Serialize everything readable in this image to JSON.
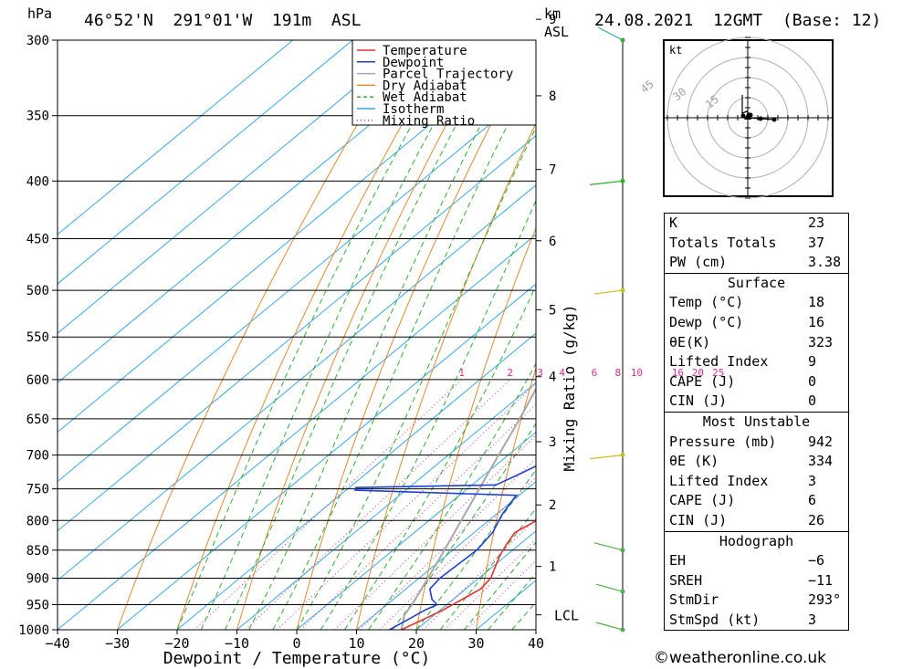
{
  "header": {
    "pressure_unit": "hPa",
    "location": "46°52'N  291°01'W  191m  ASL",
    "height_unit": "km",
    "height_unit_sub": "ASL",
    "datetime": "24.08.2021  12GMT  (Base: 12)"
  },
  "chart_data": {
    "type": "skew-t",
    "xlabel": "Dewpoint / Temperature (°C)",
    "ylabel": "Mixing Ratio (g/kg)",
    "x_ticks": [
      -40,
      -30,
      -20,
      -10,
      0,
      10,
      20,
      30,
      40
    ],
    "x_tick_labels": [
      "−40",
      "−30",
      "−20",
      "−10",
      "0",
      "10",
      "20",
      "30",
      "40"
    ],
    "xlim": [
      -40,
      40
    ],
    "pressure_levels": [
      300,
      350,
      400,
      450,
      500,
      550,
      600,
      650,
      700,
      750,
      800,
      850,
      900,
      950,
      1000
    ],
    "pressure_labels": [
      "300",
      "350",
      "400",
      "450",
      "500",
      "550",
      "600",
      "650",
      "700",
      "750",
      "800",
      "850",
      "900",
      "950",
      "1000"
    ],
    "km_ticks": [
      {
        "km": 1,
        "label": "1"
      },
      {
        "km": 2,
        "label": "2"
      },
      {
        "km": 3,
        "label": "3"
      },
      {
        "km": 4,
        "label": "4"
      },
      {
        "km": 5,
        "label": "5"
      },
      {
        "km": 6,
        "label": "6"
      },
      {
        "km": 7,
        "label": "7"
      },
      {
        "km": 8,
        "label": "8"
      },
      {
        "km": 9,
        "label": "9"
      }
    ],
    "lcl_label": "LCL",
    "lcl_pressure": 970,
    "mixing_ratio_values": [
      1,
      2,
      3,
      4,
      6,
      8,
      10,
      16,
      20,
      25
    ],
    "mixing_ratio_labels": [
      "1",
      "2",
      "3",
      "4",
      "6",
      "8",
      "10",
      "16",
      "20",
      "25"
    ],
    "legend": [
      {
        "name": "Temperature",
        "color": "#e53030",
        "style": "solid"
      },
      {
        "name": "Dewpoint",
        "color": "#2040d0",
        "style": "solid"
      },
      {
        "name": "Parcel Trajectory",
        "color": "#a8a8a8",
        "style": "solid"
      },
      {
        "name": "Dry Adiabat",
        "color": "#e08a30",
        "style": "solid"
      },
      {
        "name": "Wet Adiabat",
        "color": "#2fae2f",
        "style": "dashed"
      },
      {
        "name": "Isotherm",
        "color": "#38a8e8",
        "style": "solid"
      },
      {
        "name": "Mixing Ratio",
        "color": "#d03090",
        "style": "dotted"
      }
    ],
    "temperature": [
      [
        1000,
        17.5
      ],
      [
        980,
        19
      ],
      [
        960,
        20.5
      ],
      [
        940,
        21.5
      ],
      [
        920,
        22.5
      ],
      [
        900,
        22
      ],
      [
        880,
        20.5
      ],
      [
        860,
        19
      ],
      [
        840,
        17.8
      ],
      [
        820,
        16.8
      ],
      [
        800,
        18
      ],
      [
        790,
        19
      ],
      [
        780,
        19.5
      ],
      [
        760,
        20.5
      ],
      [
        750,
        21
      ],
      [
        730,
        16.5
      ],
      [
        700,
        12.5
      ],
      [
        680,
        10.2
      ],
      [
        650,
        7.2
      ],
      [
        620,
        5.2
      ],
      [
        600,
        3
      ],
      [
        580,
        1.3
      ],
      [
        560,
        -0.6
      ],
      [
        540,
        -2.2
      ],
      [
        520,
        -4.8
      ],
      [
        500,
        -7.5
      ],
      [
        480,
        -10.6
      ],
      [
        470,
        -12
      ],
      [
        450,
        -13.5
      ],
      [
        430,
        -16.7
      ],
      [
        410,
        -19.5
      ],
      [
        400,
        -21
      ],
      [
        380,
        -24.6
      ],
      [
        370,
        -25.8
      ],
      [
        350,
        -30.2
      ],
      [
        330,
        -33.2
      ],
      [
        310,
        -36.6
      ],
      [
        300,
        -38.8
      ]
    ],
    "dewpoint": [
      [
        1000,
        15.5
      ],
      [
        980,
        16.5
      ],
      [
        960,
        17.5
      ],
      [
        950,
        18.4
      ],
      [
        940,
        16.5
      ],
      [
        920,
        14
      ],
      [
        900,
        13.5
      ],
      [
        870,
        13.8
      ],
      [
        850,
        14
      ],
      [
        820,
        13.1
      ],
      [
        790,
        11
      ],
      [
        760,
        9.5
      ],
      [
        752,
        -18.5
      ],
      [
        748,
        -18.9
      ],
      [
        744,
        4
      ],
      [
        730,
        5.5
      ],
      [
        710,
        7.5
      ],
      [
        700,
        8.2
      ],
      [
        680,
        6
      ],
      [
        650,
        3.2
      ],
      [
        620,
        0.5
      ],
      [
        615,
        -0.1
      ],
      [
        605,
        -2.5
      ],
      [
        598,
        -4.3
      ],
      [
        590,
        -0.8
      ],
      [
        580,
        -3.8
      ],
      [
        570,
        -4.5
      ],
      [
        560,
        -3.8
      ],
      [
        550,
        -5.5
      ],
      [
        530,
        -6
      ],
      [
        510,
        -8.5
      ],
      [
        500,
        -9.8
      ],
      [
        490,
        -6.5
      ],
      [
        470,
        -11.5
      ],
      [
        450,
        -17.6
      ],
      [
        430,
        -20.5
      ],
      [
        415,
        -25.3
      ],
      [
        410,
        -23.2
      ],
      [
        405,
        -26
      ],
      [
        400,
        -20.5
      ],
      [
        395,
        -26
      ],
      [
        380,
        -33
      ],
      [
        370,
        -33
      ],
      [
        350,
        -26
      ],
      [
        340,
        -26.5
      ],
      [
        330,
        -23.5
      ],
      [
        320,
        -29
      ],
      [
        310,
        -26
      ],
      [
        300,
        -29.5
      ]
    ],
    "parcel": [
      [
        1000,
        17.5
      ],
      [
        970,
        15
      ],
      [
        950,
        14.2
      ],
      [
        900,
        11.5
      ],
      [
        850,
        8.6
      ],
      [
        800,
        5.4
      ],
      [
        750,
        2
      ],
      [
        700,
        -1.6
      ],
      [
        650,
        -5.4
      ],
      [
        600,
        -9.8
      ],
      [
        550,
        -14.8
      ],
      [
        500,
        -20.3
      ],
      [
        450,
        -26.6
      ],
      [
        400,
        -33.7
      ],
      [
        350,
        -41.9
      ],
      [
        300,
        -51.3
      ]
    ],
    "wind_barbs": [
      {
        "p": 300,
        "speed_kt": 0,
        "label": ""
      },
      {
        "p": 400,
        "speed_kt": 10,
        "label": ""
      },
      {
        "p": 500,
        "speed_kt": 5,
        "label": ""
      },
      {
        "p": 700,
        "speed_kt": 10,
        "label": ""
      },
      {
        "p": 850,
        "speed_kt": 5,
        "label": ""
      },
      {
        "p": 925,
        "speed_kt": 3,
        "label": ""
      },
      {
        "p": 1000,
        "speed_kt": 3,
        "label": ""
      }
    ]
  },
  "hodograph": {
    "unit_label": "kt",
    "ring_labels": [
      "15",
      "30",
      "45"
    ]
  },
  "indices": {
    "general": [
      {
        "label": "K",
        "value": "23"
      },
      {
        "label": "Totals Totals",
        "value": "37"
      },
      {
        "label": "PW (cm)",
        "value": "3.38"
      }
    ],
    "surface_title": "Surface",
    "surface": [
      {
        "label": "Temp (°C)",
        "value": "18"
      },
      {
        "label": "Dewp (°C)",
        "value": "16"
      },
      {
        "label": "θE(K)",
        "value": "323"
      },
      {
        "label": "Lifted Index",
        "value": "9"
      },
      {
        "label": "CAPE (J)",
        "value": "0"
      },
      {
        "label": "CIN (J)",
        "value": "0"
      }
    ],
    "mu_title": "Most Unstable",
    "mu": [
      {
        "label": "Pressure (mb)",
        "value": "942"
      },
      {
        "label": "θE (K)",
        "value": "334"
      },
      {
        "label": "Lifted Index",
        "value": "3"
      },
      {
        "label": "CAPE (J)",
        "value": "6"
      },
      {
        "label": "CIN (J)",
        "value": "26"
      }
    ],
    "hodo_title": "Hodograph",
    "hodo": [
      {
        "label": "EH",
        "value": "−6"
      },
      {
        "label": "SREH",
        "value": "−11"
      },
      {
        "label": "StmDir",
        "value": "293°"
      },
      {
        "label": "StmSpd (kt)",
        "value": "3"
      }
    ]
  },
  "footer": {
    "copyright": "©weatheronline.co.uk"
  }
}
